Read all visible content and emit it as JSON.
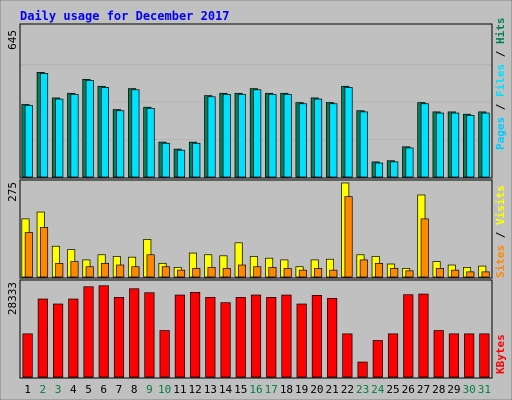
{
  "chart_data": {
    "type": "bar",
    "title": "Daily usage for December 2017",
    "days": [
      "1",
      "2",
      "3",
      "4",
      "5",
      "6",
      "7",
      "8",
      "9",
      "10",
      "11",
      "12",
      "13",
      "14",
      "15",
      "16",
      "17",
      "18",
      "19",
      "20",
      "21",
      "22",
      "23",
      "24",
      "25",
      "26",
      "27",
      "28",
      "29",
      "30",
      "31"
    ],
    "weekend_days": [
      "2",
      "3",
      "9",
      "10",
      "16",
      "17",
      "23",
      "24",
      "30",
      "31"
    ],
    "panels": [
      {
        "id": "top",
        "max_label": "645",
        "legend": [
          "Pages",
          "Files",
          "Hits"
        ],
        "ylim": [
          0,
          645
        ],
        "series": [
          {
            "name": "Hits",
            "color": "#00805c",
            "values": [
              312,
              450,
              340,
              360,
              420,
              390,
              290,
              380,
              300,
              150,
              120,
              150,
              350,
              360,
              360,
              380,
              360,
              360,
              320,
              340,
              320,
              390,
              285,
              65,
              70,
              130,
              320,
              280,
              280,
              270,
              280
            ]
          },
          {
            "name": "Files",
            "color": "#00e0ff",
            "values": [
              308,
              445,
              335,
              355,
              415,
              385,
              285,
              375,
              295,
              145,
              115,
              145,
              345,
              355,
              355,
              375,
              355,
              355,
              315,
              335,
              315,
              385,
              280,
              60,
              65,
              125,
              315,
              275,
              275,
              265,
              275
            ]
          },
          {
            "name": "Pages",
            "color": "#00ccff",
            "values": [
              0,
              0,
              0,
              0,
              0,
              0,
              0,
              0,
              0,
              0,
              0,
              0,
              0,
              0,
              0,
              0,
              0,
              0,
              0,
              0,
              0,
              0,
              0,
              0,
              0,
              0,
              0,
              0,
              0,
              0,
              0
            ]
          }
        ]
      },
      {
        "id": "middle",
        "max_label": "275",
        "legend": [
          "Sites",
          "Visits"
        ],
        "ylim": [
          0,
          275
        ],
        "series": [
          {
            "name": "Visits",
            "color": "#ffff00",
            "values": [
              170,
              190,
              90,
              80,
              50,
              65,
              60,
              58,
              110,
              40,
              28,
              70,
              65,
              62,
              100,
              60,
              55,
              50,
              30,
              50,
              52,
              275,
              65,
              60,
              38,
              25,
              240,
              45,
              35,
              28,
              32
            ]
          },
          {
            "name": "Sites",
            "color": "#ff8800",
            "values": [
              130,
              145,
              40,
              45,
              30,
              40,
              35,
              30,
              65,
              30,
              20,
              25,
              28,
              25,
              35,
              30,
              28,
              25,
              20,
              25,
              20,
              235,
              50,
              40,
              25,
              18,
              170,
              25,
              20,
              15,
              15
            ]
          }
        ]
      },
      {
        "id": "bottom",
        "max_label": "28333",
        "legend": [
          "KBytes"
        ],
        "ylim": [
          0,
          28333
        ],
        "series": [
          {
            "name": "KBytes",
            "color": "#ff0000",
            "values": [
              13000,
              23500,
              22000,
              23500,
              27200,
              27500,
              24000,
              26600,
              25400,
              14000,
              24700,
              25500,
              24000,
              22400,
              24000,
              24700,
              24000,
              24700,
              22000,
              24600,
              23700,
              13000,
              4500,
              11000,
              13000,
              24800,
              25000,
              14000,
              13000,
              13000,
              13000
            ]
          }
        ]
      }
    ]
  }
}
